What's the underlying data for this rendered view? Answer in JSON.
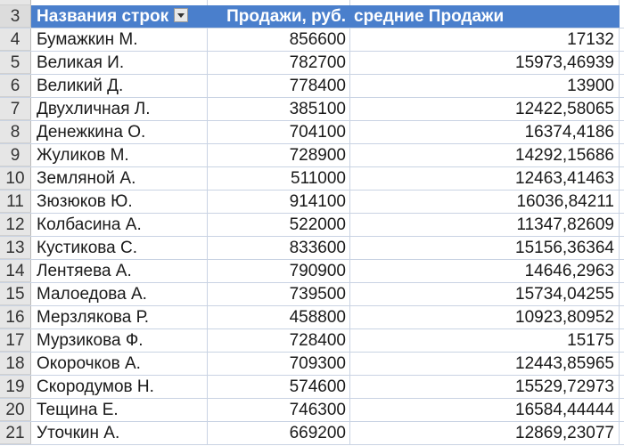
{
  "header": {
    "row_number": "3",
    "col_a": "Названия строк",
    "col_b": "Продажи, руб.",
    "col_c": "средние Продажи",
    "filter_icon": "dropdown-filter-icon"
  },
  "colors": {
    "header_bg": "#4a7fcc",
    "header_text": "#ffffff"
  },
  "rows": [
    {
      "num": "4",
      "name": "Бумажкин М.",
      "sales": "856600",
      "avg": "17132"
    },
    {
      "num": "5",
      "name": "Великая И.",
      "sales": "782700",
      "avg": "15973,46939"
    },
    {
      "num": "6",
      "name": "Великий Д.",
      "sales": "778400",
      "avg": "13900"
    },
    {
      "num": "7",
      "name": "Двухличная Л.",
      "sales": "385100",
      "avg": "12422,58065"
    },
    {
      "num": "8",
      "name": "Денежкина О.",
      "sales": "704100",
      "avg": "16374,4186"
    },
    {
      "num": "9",
      "name": "Жуликов М.",
      "sales": "728900",
      "avg": "14292,15686"
    },
    {
      "num": "10",
      "name": "Земляной А.",
      "sales": "511000",
      "avg": "12463,41463"
    },
    {
      "num": "11",
      "name": "Зюзюков Ю.",
      "sales": "914100",
      "avg": "16036,84211"
    },
    {
      "num": "12",
      "name": "Колбасина А.",
      "sales": "522000",
      "avg": "11347,82609"
    },
    {
      "num": "13",
      "name": "Кустикова С.",
      "sales": "833600",
      "avg": "15156,36364"
    },
    {
      "num": "14",
      "name": "Лентяева А.",
      "sales": "790900",
      "avg": "14646,2963"
    },
    {
      "num": "15",
      "name": "Малоедова А.",
      "sales": "739500",
      "avg": "15734,04255"
    },
    {
      "num": "16",
      "name": "Мерзлякова Р.",
      "sales": "458800",
      "avg": "10923,80952"
    },
    {
      "num": "17",
      "name": "Мурзикова Ф.",
      "sales": "728400",
      "avg": "15175"
    },
    {
      "num": "18",
      "name": "Окорочков А.",
      "sales": "709300",
      "avg": "12443,85965"
    },
    {
      "num": "19",
      "name": "Скородумов Н.",
      "sales": "574600",
      "avg": "15529,72973"
    },
    {
      "num": "20",
      "name": "Тещина Е.",
      "sales": "746300",
      "avg": "16584,44444"
    },
    {
      "num": "21",
      "name": "Уточкин А.",
      "sales": "669200",
      "avg": "12869,23077"
    }
  ]
}
